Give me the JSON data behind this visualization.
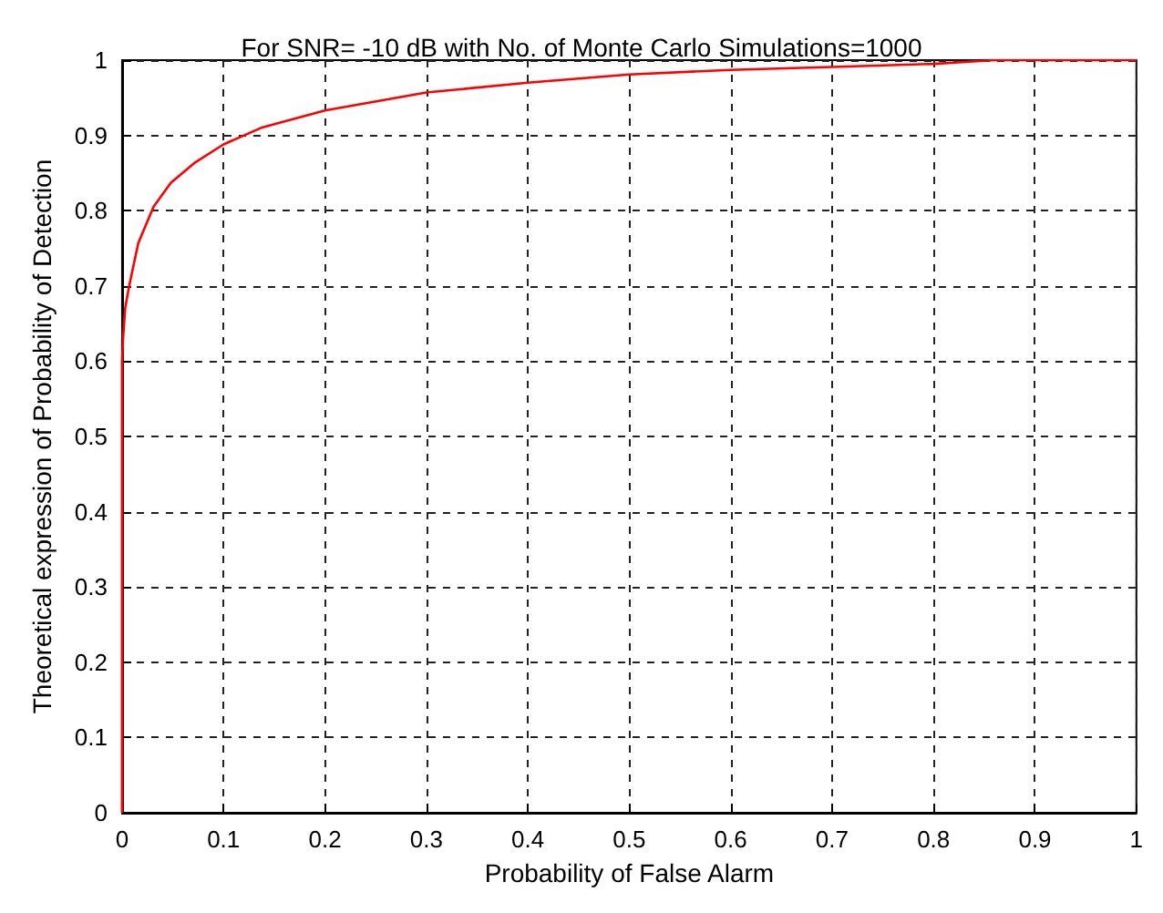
{
  "chart_data": {
    "type": "line",
    "title": "For SNR= -10 dB with No. of Monte Carlo Simulations=1000",
    "xlabel": "Probability of False Alarm",
    "ylabel": "Theoretical expression of Probability of Detection",
    "x": [
      0,
      0,
      0.001,
      0.003,
      0.007,
      0.016,
      0.031,
      0.048,
      0.072,
      0.1,
      0.137,
      0.2,
      0.3,
      0.4,
      0.5,
      0.6,
      0.7,
      0.8,
      0.86,
      0.9,
      1
    ],
    "series": [
      {
        "color": "#ff0000",
        "values": [
          0,
          0.6,
          0.63,
          0.67,
          0.7,
          0.757,
          0.805,
          0.837,
          0.864,
          0.888,
          0.91,
          0.933,
          0.957,
          0.97,
          0.981,
          0.987,
          0.991,
          0.995,
          1,
          1,
          1
        ]
      }
    ],
    "xlim": [
      0,
      1
    ],
    "ylim": [
      0,
      1
    ],
    "xticks": [
      0,
      0.1,
      0.2,
      0.3,
      0.4,
      0.5,
      0.6,
      0.7,
      0.8,
      0.9,
      1
    ],
    "yticks": [
      0,
      0.1,
      0.2,
      0.3,
      0.4,
      0.5,
      0.6,
      0.7,
      0.8,
      0.9,
      1
    ],
    "grid": true,
    "marker": "none",
    "line_style": "solid"
  }
}
